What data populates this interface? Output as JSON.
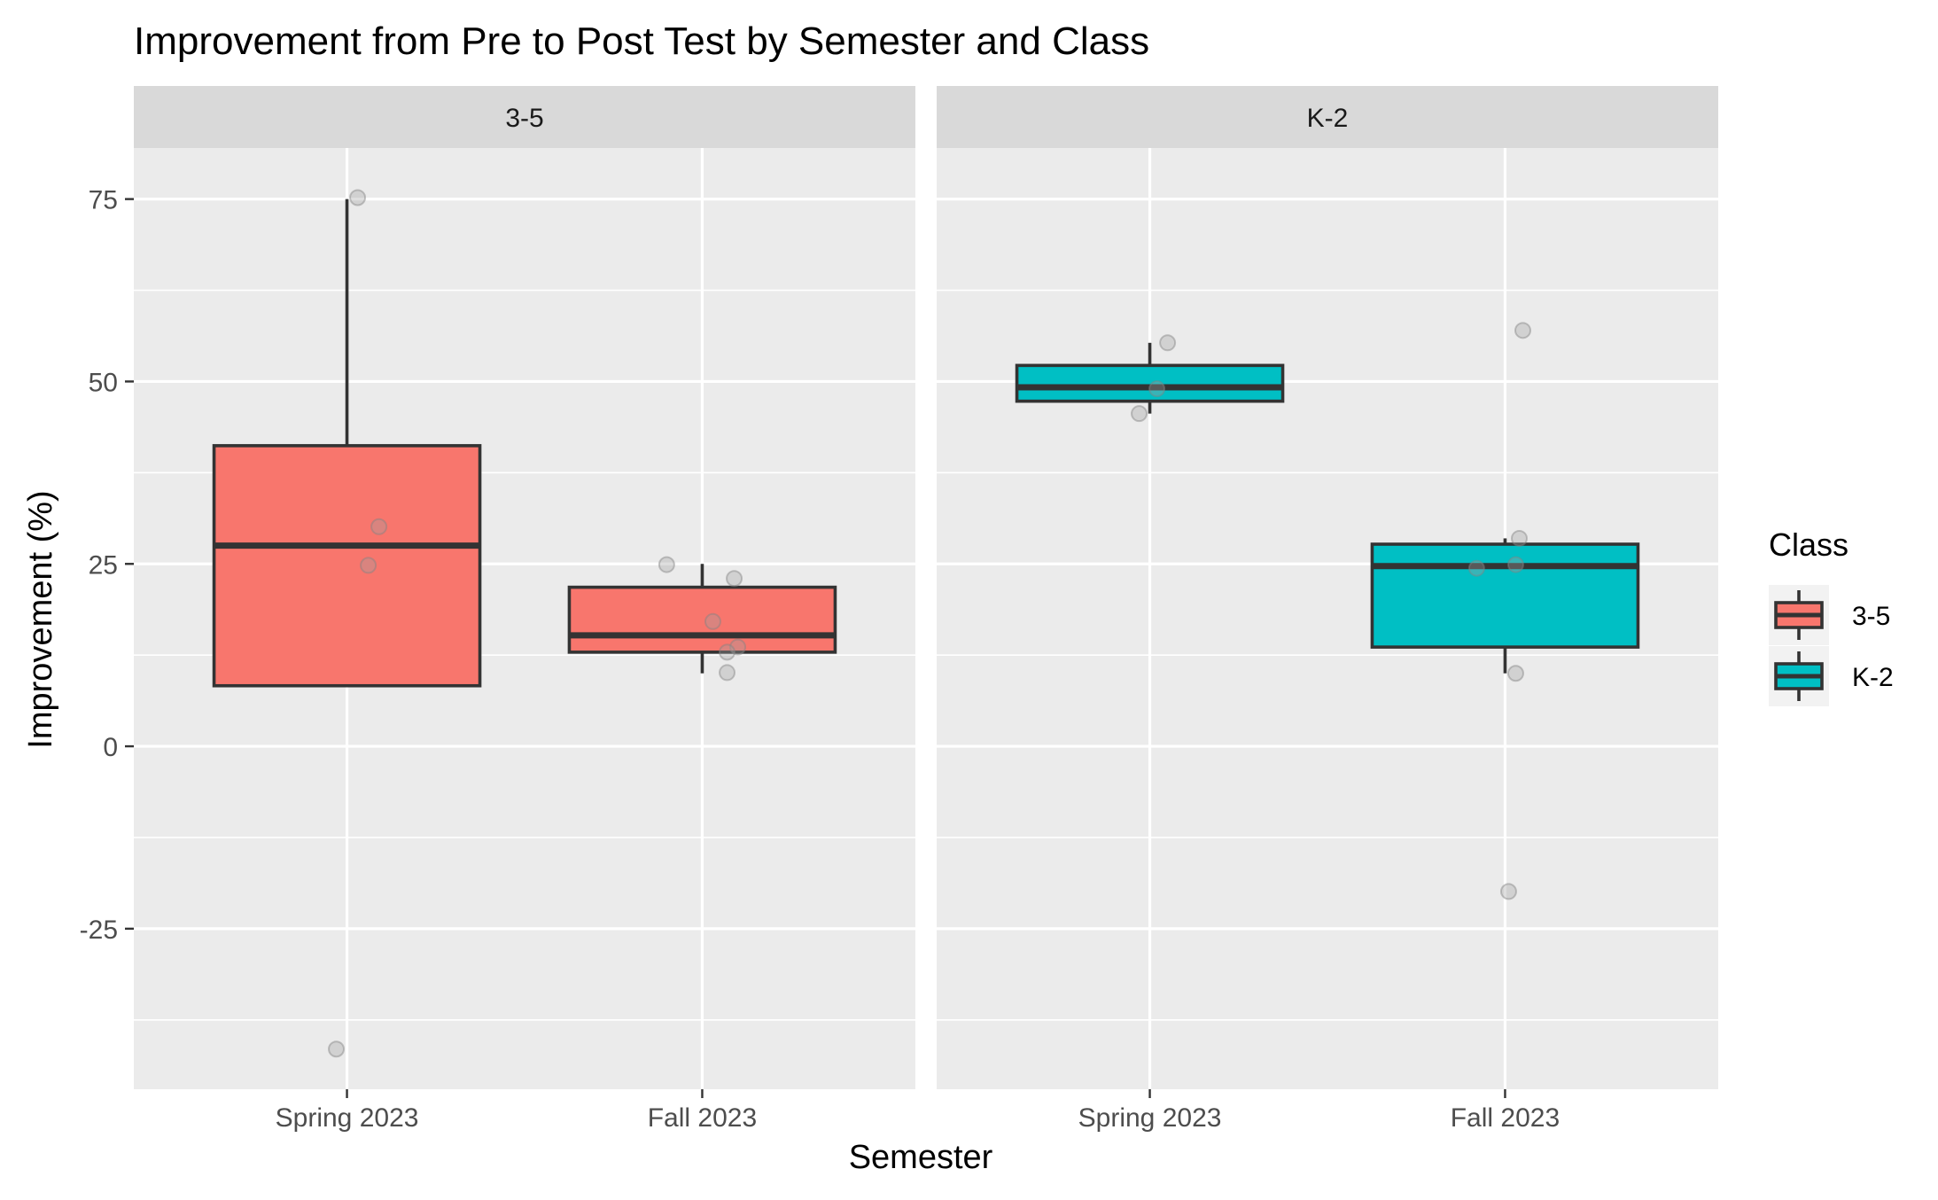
{
  "chart_data": {
    "type": "boxplot",
    "title": "Improvement from Pre to Post Test by Semester and Class",
    "xlabel": "Semester",
    "ylabel": "Improvement (%)",
    "categories": [
      "Spring 2023",
      "Fall 2023"
    ],
    "y_ticks": [
      -25,
      0,
      25,
      50,
      75
    ],
    "ylim": [
      -47,
      82
    ],
    "grid": true,
    "legend": {
      "title": "Class",
      "position": "right",
      "entries": [
        {
          "label": "3-5",
          "color": "#F8766D"
        },
        {
          "label": "K-2",
          "color": "#00BFC4"
        }
      ]
    },
    "facets": [
      {
        "label": "3-5",
        "color": "#F8766D",
        "boxes": [
          {
            "category": "Spring 2023",
            "whisker_low": 8.3,
            "q1": 8.3,
            "median": 27.5,
            "q3": 41.2,
            "whisker_high": 75.0,
            "points": [
              {
                "x_offset": 0.03,
                "y": 75.2
              },
              {
                "x_offset": 0.09,
                "y": 30.1
              },
              {
                "x_offset": 0.06,
                "y": 24.8
              },
              {
                "x_offset": -0.03,
                "y": -41.5
              }
            ]
          },
          {
            "category": "Fall 2023",
            "whisker_low": 10.0,
            "q1": 12.9,
            "median": 15.2,
            "q3": 21.8,
            "whisker_high": 25.0,
            "points": [
              {
                "x_offset": -0.1,
                "y": 24.9
              },
              {
                "x_offset": 0.09,
                "y": 23.0
              },
              {
                "x_offset": 0.03,
                "y": 17.1
              },
              {
                "x_offset": 0.1,
                "y": 13.6
              },
              {
                "x_offset": 0.07,
                "y": 12.9
              },
              {
                "x_offset": 0.07,
                "y": 10.1
              }
            ]
          }
        ]
      },
      {
        "label": "K-2",
        "color": "#00BFC4",
        "boxes": [
          {
            "category": "Spring 2023",
            "whisker_low": 45.6,
            "q1": 47.3,
            "median": 49.2,
            "q3": 52.2,
            "whisker_high": 55.3,
            "points": [
              {
                "x_offset": 0.05,
                "y": 55.3
              },
              {
                "x_offset": 0.02,
                "y": 49.0
              },
              {
                "x_offset": -0.03,
                "y": 45.6
              }
            ]
          },
          {
            "category": "Fall 2023",
            "whisker_low": 10.0,
            "q1": 13.6,
            "median": 24.7,
            "q3": 27.7,
            "whisker_high": 28.5,
            "points": [
              {
                "x_offset": 0.05,
                "y": 57.0
              },
              {
                "x_offset": 0.04,
                "y": 28.5
              },
              {
                "x_offset": 0.03,
                "y": 24.9
              },
              {
                "x_offset": -0.08,
                "y": 24.4
              },
              {
                "x_offset": 0.03,
                "y": 10.0
              },
              {
                "x_offset": 0.01,
                "y": -19.9
              }
            ]
          }
        ]
      }
    ]
  }
}
